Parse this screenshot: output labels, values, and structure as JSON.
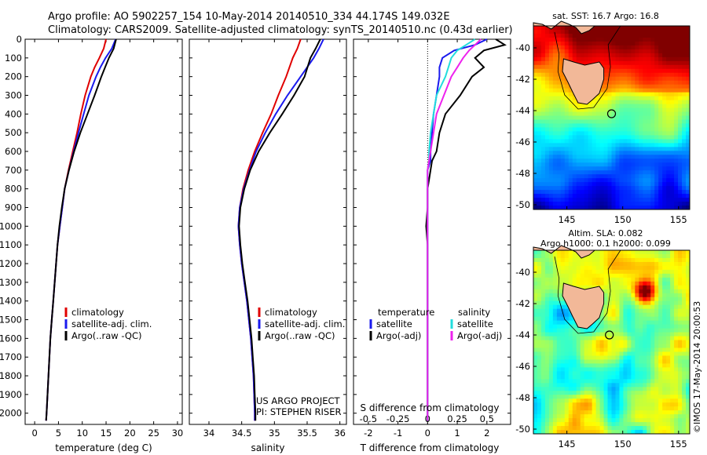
{
  "header": {
    "line1": "Argo profile: AO 5902257_154 10-May-2014 20140510_334 44.174S 149.032E",
    "line2": "Climatology: CARS2009. Satellite-adjusted climatology: synTS_20140510.nc (0.43d earlier)"
  },
  "colors": {
    "red": "#e00000",
    "blue": "#1a1aee",
    "black": "#000000",
    "cyan": "#22dddd",
    "magenta": "#ee22ee"
  },
  "chart_data": [
    {
      "type": "line",
      "xlabel": "temperature (deg C)",
      "xlim": [
        -2,
        31
      ],
      "ylim": [
        2060,
        0
      ],
      "xticks": [
        "0",
        "5",
        "10",
        "15",
        "20",
        "25",
        "30"
      ],
      "yticks": [
        "0",
        "100",
        "200",
        "300",
        "400",
        "500",
        "600",
        "700",
        "800",
        "900",
        "1000",
        "1100",
        "1200",
        "1300",
        "1400",
        "1500",
        "1600",
        "1700",
        "1800",
        "1900",
        "2000"
      ],
      "depth": [
        0,
        50,
        100,
        150,
        200,
        300,
        400,
        500,
        600,
        700,
        800,
        900,
        1000,
        1100,
        1200,
        1300,
        1400,
        1500,
        1600,
        1700,
        1800,
        1900,
        2000,
        2040
      ],
      "series": [
        {
          "name": "climatology",
          "color_key": "red",
          "values": [
            15.0,
            14.5,
            13.6,
            12.6,
            11.8,
            10.6,
            9.7,
            8.9,
            8.0,
            7.1,
            6.3,
            5.8,
            5.3,
            4.8,
            4.5,
            4.2,
            3.9,
            3.6,
            3.3,
            3.1,
            2.9,
            2.7,
            2.5,
            2.4
          ]
        },
        {
          "name": "satellite-adj. clim.",
          "color_key": "blue",
          "values": [
            17.0,
            16.2,
            14.9,
            13.8,
            12.9,
            11.4,
            10.3,
            9.2,
            8.2,
            7.2,
            6.3,
            5.8,
            5.3,
            4.8,
            4.5,
            4.2,
            3.9,
            3.6,
            3.3,
            3.1,
            2.9,
            2.7,
            2.5,
            2.4
          ]
        },
        {
          "name": "Argo(..raw -QC)",
          "color_key": "black",
          "values": [
            17.1,
            16.6,
            15.6,
            14.8,
            14.0,
            12.6,
            11.1,
            9.6,
            8.3,
            7.2,
            6.3,
            5.7,
            5.2,
            4.8,
            4.5,
            4.2,
            3.9,
            3.6,
            3.3,
            3.1,
            2.9,
            2.7,
            2.5,
            2.4
          ]
        }
      ]
    },
    {
      "type": "line",
      "xlabel": "salinity",
      "xlim": [
        33.7,
        36.1
      ],
      "ylim": [
        2060,
        0
      ],
      "xticks": [
        "34",
        "34.5",
        "35",
        "35.5",
        "36"
      ],
      "depth": [
        0,
        50,
        100,
        200,
        300,
        400,
        500,
        600,
        700,
        800,
        900,
        1000,
        1100,
        1200,
        1300,
        1400,
        1500,
        1600,
        1700,
        1800,
        1900,
        2000,
        2040
      ],
      "series": [
        {
          "name": "climatology",
          "color_key": "red",
          "values": [
            35.4,
            35.35,
            35.28,
            35.18,
            35.06,
            34.95,
            34.82,
            34.7,
            34.6,
            34.52,
            34.47,
            34.45,
            34.47,
            34.5,
            34.54,
            34.58,
            34.61,
            34.64,
            34.66,
            34.68,
            34.69,
            34.7,
            34.7
          ]
        },
        {
          "name": "satellite-adj. clim.",
          "color_key": "blue",
          "values": [
            35.75,
            35.68,
            35.6,
            35.4,
            35.2,
            35.02,
            34.86,
            34.72,
            34.62,
            34.53,
            34.47,
            34.45,
            34.47,
            34.5,
            34.54,
            34.58,
            34.61,
            34.64,
            34.66,
            34.68,
            34.69,
            34.7,
            34.7
          ]
        },
        {
          "name": "Argo(..raw -QC)",
          "color_key": "black",
          "values": [
            35.7,
            35.63,
            35.55,
            35.46,
            35.3,
            35.12,
            34.93,
            34.76,
            34.63,
            34.54,
            34.48,
            34.46,
            34.48,
            34.51,
            34.55,
            34.59,
            34.62,
            34.65,
            34.67,
            34.69,
            34.7,
            34.71,
            34.71
          ]
        }
      ]
    },
    {
      "type": "line",
      "xlabel": "T difference from climatology",
      "xlabel2": "S difference from climatology",
      "xlim": [
        -2.5,
        2.8
      ],
      "ylim": [
        2060,
        0
      ],
      "xticks": [
        "-2",
        "-1",
        "0",
        "1",
        "2"
      ],
      "xticks2": [
        "-0.5",
        "-0.25",
        "0",
        "0.25",
        "0.5"
      ],
      "zero_line": 0,
      "depth": [
        0,
        30,
        60,
        100,
        150,
        200,
        300,
        400,
        500,
        600,
        650,
        700,
        800,
        900,
        1000,
        1100,
        1200,
        1400,
        1600,
        1800,
        2000,
        2040
      ],
      "series": [
        {
          "name": "temperature satellite",
          "color_key": "blue",
          "values": [
            2.0,
            1.6,
            0.9,
            0.5,
            0.4,
            0.4,
            0.3,
            0.2,
            0.15,
            0.1,
            0.1,
            0.0,
            0.0,
            0.0,
            0.0,
            0.0,
            0.0,
            0.0,
            0.0,
            0.0,
            0.0,
            0.0
          ]
        },
        {
          "name": "temperature Argo(-adj)",
          "color_key": "black",
          "values": [
            2.3,
            2.6,
            1.9,
            1.6,
            1.9,
            1.5,
            1.1,
            0.6,
            0.4,
            0.3,
            0.15,
            0.1,
            0.0,
            0.0,
            -0.05,
            0.0,
            0.0,
            0.0,
            0.0,
            0.0,
            0.0,
            0.0
          ]
        },
        {
          "name": "salinity satellite",
          "color_key": "cyan",
          "values": [
            1.6,
            1.3,
            1.0,
            0.8,
            0.7,
            0.6,
            0.3,
            0.2,
            0.1,
            0.05,
            0.05,
            0.0,
            0.0,
            0.0,
            0.0,
            0.0,
            0.0,
            0.0,
            0.0,
            0.0,
            0.0,
            0.0
          ]
        },
        {
          "name": "salinity Argo(-adj)",
          "color_key": "magenta",
          "values": [
            1.8,
            1.6,
            1.4,
            1.2,
            1.0,
            0.8,
            0.55,
            0.3,
            0.2,
            0.1,
            0.05,
            0.0,
            0.0,
            0.0,
            0.0,
            0.0,
            0.0,
            0.0,
            0.0,
            0.0,
            0.0,
            0.0
          ]
        }
      ]
    },
    {
      "type": "heatmap",
      "title": "sat. SST: 16.7 Argo: 16.8",
      "xlim": [
        142,
        156
      ],
      "ylim": [
        -50.3,
        -38.6
      ],
      "xticks": [
        "145",
        "150",
        "155"
      ],
      "yticks": [
        "-40",
        "-42",
        "-44",
        "-46",
        "-48",
        "-50"
      ],
      "argo_position": {
        "lon": 149.0,
        "lat": -44.2
      }
    },
    {
      "type": "heatmap",
      "title": "Altim. SLA: 0.082",
      "subtitle": "Argo h1000: 0.1 h2000: 0.099",
      "xlim": [
        142,
        156
      ],
      "ylim": [
        -50.3,
        -38.6
      ],
      "xticks": [
        "145",
        "150",
        "155"
      ],
      "yticks": [
        "-40",
        "-42",
        "-44",
        "-46",
        "-48",
        "-50"
      ],
      "argo_position": {
        "lon": 148.8,
        "lat": -44.0
      }
    }
  ],
  "legends": {
    "temperature": [
      "climatology",
      "satellite-adj. clim.",
      "Argo(..raw -QC)"
    ],
    "salinity": [
      "climatology",
      "satellite-adj. clim.",
      "Argo(..raw -QC)"
    ],
    "diff_headers": [
      "temperature",
      "salinity"
    ],
    "diff_items": [
      "satellite",
      "Argo(-adj)",
      "satellite",
      "Argo(-adj)"
    ]
  },
  "project": {
    "line1": "US ARGO PROJECT",
    "line2": "PI: STEPHEN RISER"
  },
  "side_note": "©IMOS 17-May-2014 20:00:53"
}
